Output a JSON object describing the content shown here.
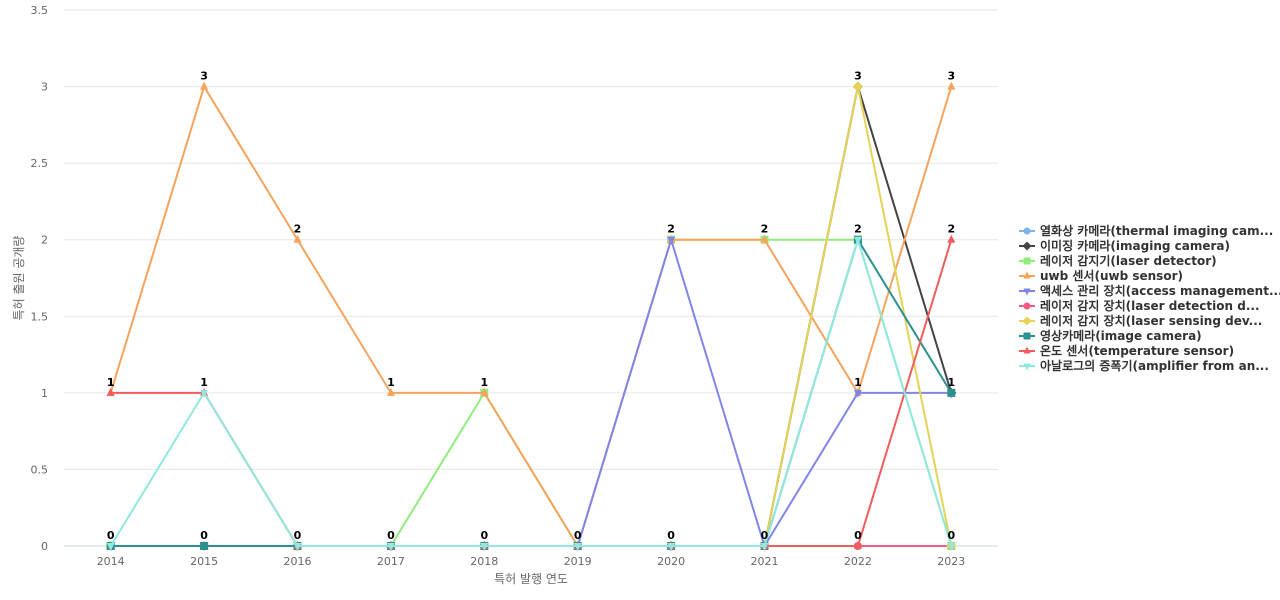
{
  "chart_data": {
    "type": "line",
    "xlabel": "특허 발행 연도",
    "ylabel": "특허 출원 공개량",
    "ylim": [
      0,
      3.5
    ],
    "yticks": [
      "0",
      "0.5",
      "1",
      "1.5",
      "2",
      "2.5",
      "3",
      "3.5"
    ],
    "ytick_values": [
      0,
      0.5,
      1,
      1.5,
      2,
      2.5,
      3,
      3.5
    ],
    "categories": [
      "2014",
      "2015",
      "2016",
      "2017",
      "2018",
      "2019",
      "2020",
      "2021",
      "2022",
      "2023"
    ],
    "grid": true,
    "legend_position": "right",
    "series": [
      {
        "name": "열화상 카메라(thermal imaging cam...",
        "color": "#7cb5ec",
        "marker": "circle",
        "values": [
          0,
          0,
          0,
          0,
          0,
          0,
          0,
          0,
          0,
          0
        ]
      },
      {
        "name": "이미징 카메라(imaging camera)",
        "color": "#434348",
        "marker": "diamond",
        "values": [
          0,
          0,
          0,
          0,
          0,
          0,
          0,
          0,
          3,
          1
        ]
      },
      {
        "name": "레이저 감지기(laser detector)",
        "color": "#90ed7d",
        "marker": "square",
        "values": [
          0,
          0,
          0,
          0,
          1,
          0,
          2,
          2,
          2,
          0
        ]
      },
      {
        "name": "uwb 센서(uwb sensor)",
        "color": "#f7a35c",
        "marker": "triangle",
        "values": [
          1,
          3,
          2,
          1,
          1,
          0,
          2,
          2,
          1,
          3
        ]
      },
      {
        "name": "액세스 관리 장치(access management...",
        "color": "#8085e9",
        "marker": "triangle-down",
        "values": [
          0,
          0,
          0,
          0,
          0,
          0,
          2,
          0,
          1,
          1
        ]
      },
      {
        "name": "레이저 감지 장치(laser detection d...",
        "color": "#f15c80",
        "marker": "circle",
        "values": [
          0,
          0,
          0,
          0,
          0,
          0,
          0,
          0,
          0,
          0
        ]
      },
      {
        "name": "레이저 감지 장치(laser sensing dev...",
        "color": "#e4d354",
        "marker": "diamond",
        "values": [
          0,
          0,
          0,
          0,
          0,
          0,
          0,
          0,
          3,
          0
        ]
      },
      {
        "name": "영상카메라(image camera)",
        "color": "#2b908f",
        "marker": "square",
        "values": [
          0,
          0,
          0,
          0,
          0,
          0,
          0,
          0,
          2,
          1
        ]
      },
      {
        "name": "온도 센서(temperature sensor)",
        "color": "#f45b5b",
        "marker": "triangle",
        "values": [
          1,
          1,
          0,
          0,
          0,
          0,
          0,
          0,
          0,
          2
        ]
      },
      {
        "name": "아날로그의 증폭기(amplifier from an...",
        "color": "#91e8e1",
        "marker": "triangle-down",
        "values": [
          0,
          1,
          0,
          0,
          0,
          0,
          0,
          0,
          2,
          0
        ]
      }
    ],
    "data_labels": [
      "1",
      "3",
      "2",
      "1",
      "1",
      "0",
      "2",
      "2",
      "1",
      "3"
    ],
    "data_labels_low": [
      "0",
      "0",
      "0",
      "0",
      "0",
      "0",
      "0",
      "0",
      "0",
      "0"
    ],
    "data_labels_extra": [
      {
        "x": "2014",
        "y": 1,
        "text": "1"
      },
      {
        "x": "2015",
        "y": 1,
        "text": "1"
      },
      {
        "x": "2022",
        "y": 3,
        "text": "3"
      },
      {
        "x": "2022",
        "y": 2,
        "text": "2"
      },
      {
        "x": "2023",
        "y": 2,
        "text": "2"
      },
      {
        "x": "2023",
        "y": 1,
        "text": "1"
      }
    ]
  }
}
